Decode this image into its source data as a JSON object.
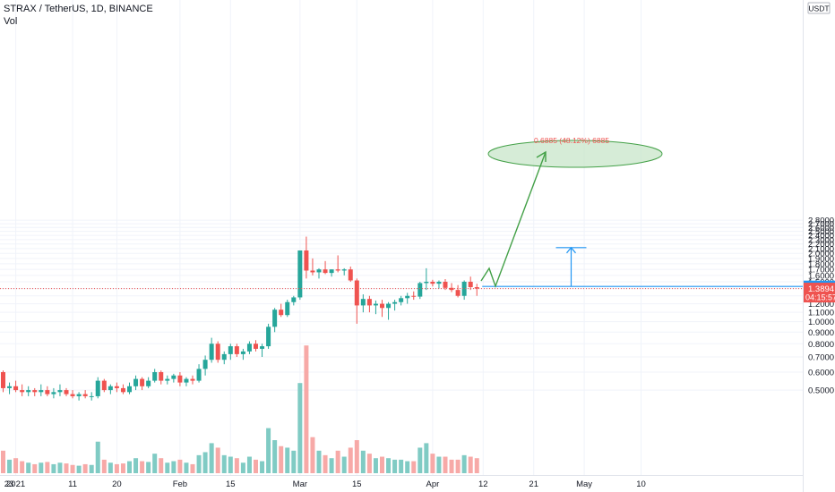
{
  "header": {
    "symbol_line": "STRAX / TetherUS, 1D, BINANCE",
    "volume_label": "Vol"
  },
  "price_axis": {
    "currency": "USDT",
    "ticks": [
      "2.8000",
      "2.7000",
      "2.6000",
      "2.5000",
      "2.4000",
      "2.3000",
      "2.2000",
      "2.1000",
      "2.0000",
      "1.9000",
      "1.8000",
      "1.7000",
      "1.6000",
      "1.5000",
      "1.4000",
      "1.3000",
      "1.2000",
      "1.1000",
      "1.0000",
      "0.9000",
      "0.8000",
      "0.7000",
      "0.6000",
      "0.5000"
    ],
    "tick_values": [
      2.8,
      2.7,
      2.6,
      2.5,
      2.4,
      2.3,
      2.2,
      2.1,
      2.0,
      1.9,
      1.8,
      1.7,
      1.6,
      1.5,
      1.4,
      1.3,
      1.2,
      1.1,
      1.0,
      0.9,
      0.8,
      0.7,
      0.6,
      0.5
    ],
    "label_target": "1.4304",
    "label_last": "1.3894",
    "label_countdown": "04:15:57"
  },
  "time_axis": {
    "ticks": [
      "23",
      "2021",
      "11",
      "20",
      "Feb",
      "15",
      "Mar",
      "15",
      "Apr",
      "12",
      "21",
      "May",
      "10"
    ],
    "tick_bar_index": [
      -4,
      2,
      11,
      18,
      28,
      36,
      47,
      56,
      68,
      76,
      84,
      92,
      101
    ]
  },
  "projection": {
    "label": "0.6885 (48.12%) 6885",
    "target_price": 2.12,
    "base_price": 1.4304
  },
  "colors": {
    "up": "#26a69a",
    "down": "#ef5350",
    "vol_up": "#80cbc4",
    "vol_down": "#f7a9a7",
    "grid": "#f0f3fa",
    "text": "#131722",
    "projection_line": "#2196f3",
    "arrow": "#43a047",
    "ellipse_fill": "#c8e6c9",
    "ellipse_stroke": "#43a047",
    "label_text": "#ef5350"
  },
  "chart_data": {
    "type": "candlestick",
    "title": "STRAX / TetherUS, 1D, BINANCE",
    "ylabel": "USDT",
    "ylim": [
      0.45,
      2.9
    ],
    "first_visible_bar_date": "2020-12-26",
    "x_range_end": "2021-05-10",
    "candles": [
      [
        0.6,
        0.61,
        0.49,
        0.51,
        30
      ],
      [
        0.51,
        0.54,
        0.48,
        0.52,
        18
      ],
      [
        0.52,
        0.55,
        0.49,
        0.5,
        20
      ],
      [
        0.5,
        0.53,
        0.47,
        0.49,
        16
      ],
      [
        0.49,
        0.52,
        0.47,
        0.5,
        14
      ],
      [
        0.5,
        0.51,
        0.47,
        0.49,
        12
      ],
      [
        0.49,
        0.53,
        0.47,
        0.5,
        14
      ],
      [
        0.5,
        0.52,
        0.47,
        0.48,
        15
      ],
      [
        0.48,
        0.51,
        0.46,
        0.49,
        12
      ],
      [
        0.49,
        0.53,
        0.47,
        0.5,
        14
      ],
      [
        0.5,
        0.51,
        0.47,
        0.48,
        13
      ],
      [
        0.48,
        0.5,
        0.46,
        0.47,
        11
      ],
      [
        0.47,
        0.49,
        0.45,
        0.48,
        10
      ],
      [
        0.48,
        0.5,
        0.46,
        0.47,
        12
      ],
      [
        0.47,
        0.49,
        0.45,
        0.47,
        11
      ],
      [
        0.47,
        0.57,
        0.46,
        0.55,
        42
      ],
      [
        0.55,
        0.56,
        0.49,
        0.5,
        18
      ],
      [
        0.5,
        0.53,
        0.48,
        0.52,
        14
      ],
      [
        0.52,
        0.54,
        0.49,
        0.51,
        12
      ],
      [
        0.51,
        0.53,
        0.48,
        0.49,
        13
      ],
      [
        0.49,
        0.54,
        0.48,
        0.52,
        16
      ],
      [
        0.52,
        0.58,
        0.5,
        0.56,
        20
      ],
      [
        0.56,
        0.57,
        0.5,
        0.52,
        16
      ],
      [
        0.52,
        0.57,
        0.51,
        0.55,
        15
      ],
      [
        0.55,
        0.62,
        0.54,
        0.6,
        26
      ],
      [
        0.6,
        0.61,
        0.53,
        0.55,
        20
      ],
      [
        0.55,
        0.58,
        0.53,
        0.56,
        14
      ],
      [
        0.56,
        0.59,
        0.54,
        0.58,
        16
      ],
      [
        0.58,
        0.6,
        0.52,
        0.54,
        18
      ],
      [
        0.54,
        0.57,
        0.52,
        0.56,
        14
      ],
      [
        0.56,
        0.58,
        0.53,
        0.55,
        12
      ],
      [
        0.55,
        0.65,
        0.54,
        0.62,
        24
      ],
      [
        0.62,
        0.71,
        0.58,
        0.68,
        28
      ],
      [
        0.68,
        0.85,
        0.66,
        0.8,
        40
      ],
      [
        0.8,
        0.82,
        0.66,
        0.68,
        34
      ],
      [
        0.68,
        0.74,
        0.65,
        0.72,
        24
      ],
      [
        0.72,
        0.8,
        0.68,
        0.78,
        22
      ],
      [
        0.78,
        0.8,
        0.7,
        0.72,
        20
      ],
      [
        0.72,
        0.76,
        0.68,
        0.74,
        14
      ],
      [
        0.74,
        0.82,
        0.72,
        0.8,
        22
      ],
      [
        0.8,
        0.83,
        0.74,
        0.76,
        18
      ],
      [
        0.76,
        0.8,
        0.7,
        0.78,
        16
      ],
      [
        0.78,
        0.98,
        0.76,
        0.95,
        60
      ],
      [
        0.95,
        1.15,
        0.9,
        1.13,
        44
      ],
      [
        1.13,
        1.2,
        1.05,
        1.07,
        36
      ],
      [
        1.07,
        1.25,
        1.05,
        1.22,
        34
      ],
      [
        1.22,
        1.3,
        1.18,
        1.28,
        30
      ],
      [
        1.28,
        2.06,
        1.25,
        2.06,
        120
      ],
      [
        2.06,
        2.37,
        1.55,
        1.68,
        170
      ],
      [
        1.68,
        1.9,
        1.6,
        1.65,
        48
      ],
      [
        1.65,
        1.72,
        1.55,
        1.7,
        30
      ],
      [
        1.7,
        1.85,
        1.62,
        1.64,
        24
      ],
      [
        1.64,
        1.7,
        1.58,
        1.7,
        20
      ],
      [
        1.7,
        1.96,
        1.65,
        1.68,
        30
      ],
      [
        1.68,
        1.72,
        1.6,
        1.7,
        22
      ],
      [
        1.7,
        1.75,
        1.5,
        1.52,
        34
      ],
      [
        1.52,
        1.55,
        0.98,
        1.18,
        44
      ],
      [
        1.18,
        1.32,
        1.1,
        1.26,
        30
      ],
      [
        1.26,
        1.3,
        1.1,
        1.18,
        26
      ],
      [
        1.18,
        1.24,
        1.08,
        1.2,
        20
      ],
      [
        1.2,
        1.25,
        1.05,
        1.15,
        22
      ],
      [
        1.15,
        1.22,
        1.02,
        1.2,
        20
      ],
      [
        1.2,
        1.25,
        1.12,
        1.22,
        18
      ],
      [
        1.22,
        1.3,
        1.18,
        1.27,
        18
      ],
      [
        1.27,
        1.34,
        1.2,
        1.3,
        16
      ],
      [
        1.3,
        1.36,
        1.25,
        1.29,
        16
      ],
      [
        1.29,
        1.5,
        1.26,
        1.48,
        34
      ],
      [
        1.48,
        1.72,
        1.38,
        1.5,
        40
      ],
      [
        1.5,
        1.53,
        1.43,
        1.47,
        26
      ],
      [
        1.47,
        1.52,
        1.4,
        1.5,
        22
      ],
      [
        1.5,
        1.54,
        1.38,
        1.41,
        22
      ],
      [
        1.41,
        1.48,
        1.35,
        1.38,
        18
      ],
      [
        1.38,
        1.45,
        1.28,
        1.3,
        18
      ],
      [
        1.3,
        1.52,
        1.25,
        1.5,
        24
      ],
      [
        1.5,
        1.58,
        1.38,
        1.42,
        22
      ],
      [
        1.42,
        1.47,
        1.3,
        1.4,
        20
      ]
    ]
  }
}
